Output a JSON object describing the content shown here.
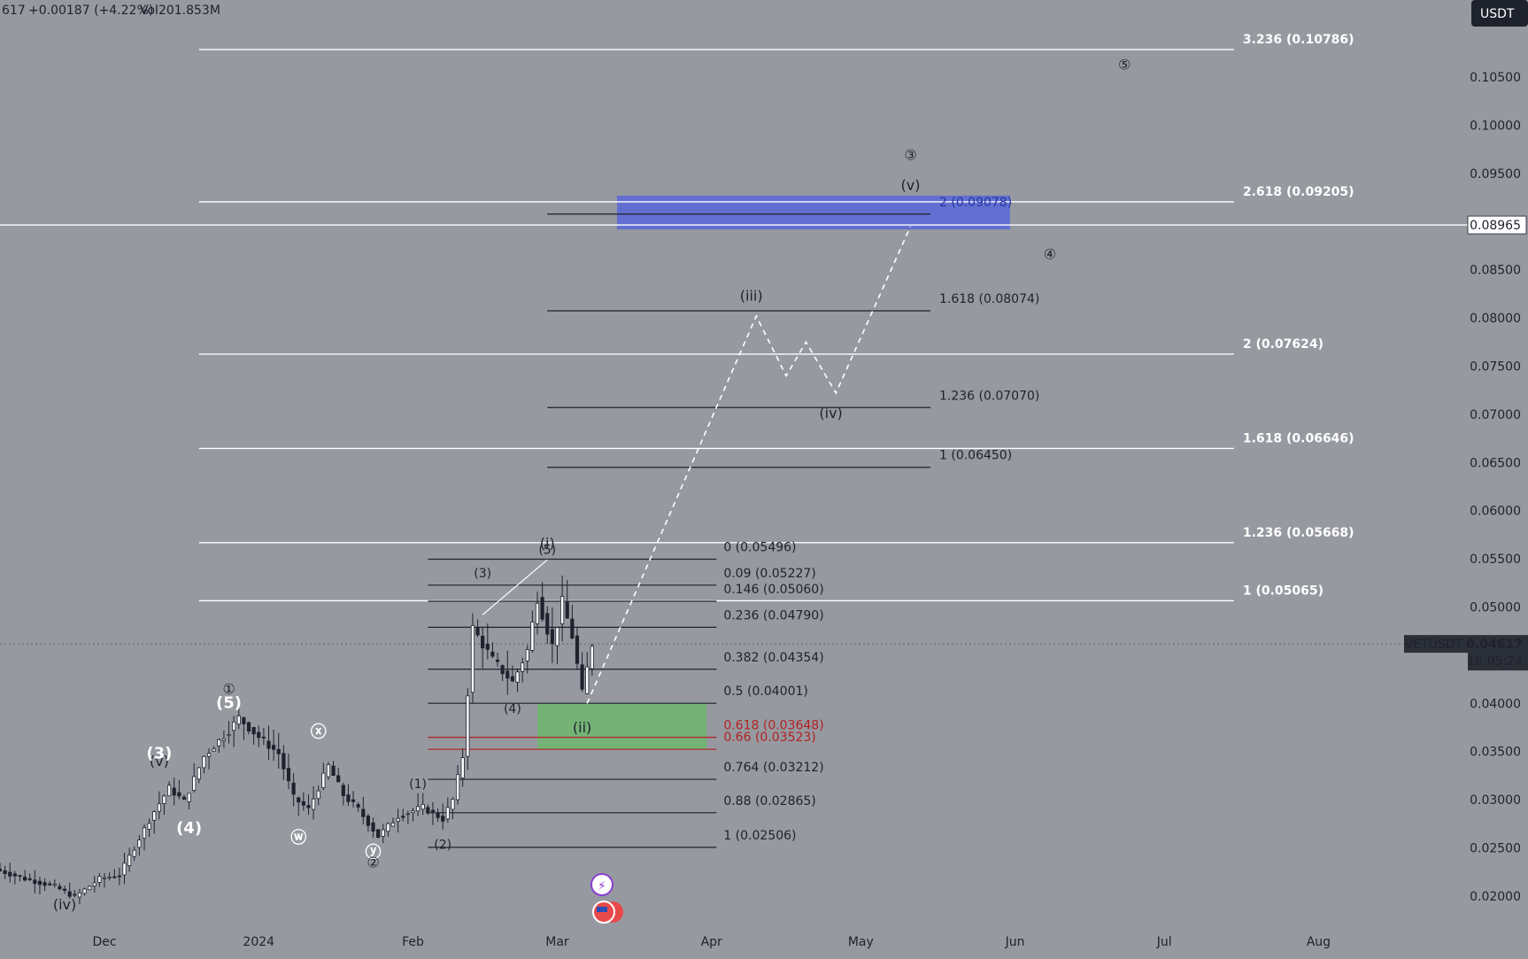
{
  "header": {
    "price_fragment": "617",
    "change": "+0.00187 (+4.22%)",
    "volume": "Vol201.853M"
  },
  "currency_badge": "USDT",
  "symbol_badge": {
    "symbol": "VETUSDT",
    "price": "0.04617",
    "countdown": "16:05:24"
  },
  "crosshair_price": "0.08965",
  "colors": {
    "background": "#9699a0",
    "candle": "#ffffff",
    "fib_white": "#ffffff",
    "fib_black": "#1e222d",
    "fib_red": "#b22222",
    "target_zone": "#5061e0",
    "support_zone": "#6bb86b"
  },
  "chart_data": {
    "type": "candlestick",
    "symbol": "VETUSDT",
    "quote": "USDT",
    "y_axis": {
      "ylim": [
        0.0165,
        0.113
      ],
      "ticks": [
        "0.02000",
        "0.02500",
        "0.03000",
        "0.03500",
        "0.04000",
        "0.04500",
        "0.05000",
        "0.05500",
        "0.06000",
        "0.06500",
        "0.07000",
        "0.07500",
        "0.08000",
        "0.08500",
        "0.09000",
        "0.09500",
        "0.10000",
        "0.10500"
      ],
      "tick_values": [
        0.02,
        0.025,
        0.03,
        0.035,
        0.04,
        0.045,
        0.05,
        0.055,
        0.06,
        0.065,
        0.07,
        0.075,
        0.08,
        0.085,
        0.09,
        0.095,
        0.1,
        0.105
      ]
    },
    "x_axis": {
      "xlim": [
        "2023-11-10",
        "2024-08-31"
      ],
      "ticks": [
        {
          "label": "Dec",
          "date": "2023-12-01"
        },
        {
          "label": "2024",
          "date": "2024-01-01"
        },
        {
          "label": "Feb",
          "date": "2024-02-01"
        },
        {
          "label": "Mar",
          "date": "2024-03-01"
        },
        {
          "label": "Apr",
          "date": "2024-04-01"
        },
        {
          "label": "May",
          "date": "2024-05-01"
        },
        {
          "label": "Jun",
          "date": "2024-06-01"
        },
        {
          "label": "Jul",
          "date": "2024-07-01"
        },
        {
          "label": "Aug",
          "date": "2024-08-01"
        }
      ]
    },
    "price_path": [
      [
        "2023-11-10",
        0.0228
      ],
      [
        "2023-11-16",
        0.0218
      ],
      [
        "2023-11-22",
        0.021
      ],
      [
        "2023-11-26",
        0.0199
      ],
      [
        "2023-12-01",
        0.0218
      ],
      [
        "2023-12-05",
        0.0222
      ],
      [
        "2023-12-09",
        0.026
      ],
      [
        "2023-12-12",
        0.0288
      ],
      [
        "2023-12-15",
        0.0312
      ],
      [
        "2023-12-18",
        0.0298
      ],
      [
        "2023-12-22",
        0.0345
      ],
      [
        "2023-12-27",
        0.0372
      ],
      [
        "2023-12-29",
        0.0385
      ],
      [
        "2024-01-02",
        0.0365
      ],
      [
        "2024-01-06",
        0.0348
      ],
      [
        "2024-01-09",
        0.0302
      ],
      [
        "2024-01-12",
        0.029
      ],
      [
        "2024-01-16",
        0.0335
      ],
      [
        "2024-01-19",
        0.0305
      ],
      [
        "2024-01-22",
        0.029
      ],
      [
        "2024-01-26",
        0.0262
      ],
      [
        "2024-01-30",
        0.0283
      ],
      [
        "2024-02-04",
        0.0292
      ],
      [
        "2024-02-08",
        0.028
      ],
      [
        "2024-02-10",
        0.03
      ],
      [
        "2024-02-12",
        0.0345
      ],
      [
        "2024-02-14",
        0.0478
      ],
      [
        "2024-02-18",
        0.0445
      ],
      [
        "2024-02-22",
        0.0422
      ],
      [
        "2024-02-25",
        0.0455
      ],
      [
        "2024-02-27",
        0.051
      ],
      [
        "2024-03-01",
        0.046
      ],
      [
        "2024-03-03",
        0.0505
      ],
      [
        "2024-03-05",
        0.047
      ],
      [
        "2024-03-07",
        0.041
      ],
      [
        "2024-03-09",
        0.0462
      ]
    ],
    "projection_path": [
      [
        "2024-03-07",
        0.04
      ],
      [
        "2024-04-10",
        0.0802
      ],
      [
        "2024-04-16",
        0.074
      ],
      [
        "2024-04-20",
        0.0775
      ],
      [
        "2024-04-26",
        0.0722
      ],
      [
        "2024-05-11",
        0.0895
      ]
    ],
    "fib_white": [
      {
        "label": "3.236 (0.10786)",
        "value": 0.10786
      },
      {
        "label": "2.618 (0.09205)",
        "value": 0.09205
      },
      {
        "label": "2 (0.07624)",
        "value": 0.07624
      },
      {
        "label": "1.618 (0.06646)",
        "value": 0.06646
      },
      {
        "label": "1.236 (0.05668)",
        "value": 0.05668
      },
      {
        "label": "1 (0.05065)",
        "value": 0.05065
      }
    ],
    "fib_ext_black": [
      {
        "label": "2 (0.09078)",
        "value": 0.09078
      },
      {
        "label": "1.618 (0.08074)",
        "value": 0.08074
      },
      {
        "label": "1.236 (0.07070)",
        "value": 0.0707
      },
      {
        "label": "1 (0.06450)",
        "value": 0.0645
      }
    ],
    "fib_retrace": [
      {
        "label": "0 (0.05496)",
        "value": 0.05496,
        "color": "black"
      },
      {
        "label": "0.09 (0.05227)",
        "value": 0.05227,
        "color": "black"
      },
      {
        "label": "0.146 (0.05060)",
        "value": 0.0506,
        "color": "black"
      },
      {
        "label": "0.236 (0.04790)",
        "value": 0.0479,
        "color": "black"
      },
      {
        "label": "0.382 (0.04354)",
        "value": 0.04354,
        "color": "black"
      },
      {
        "label": "0.5 (0.04001)",
        "value": 0.04001,
        "color": "black"
      },
      {
        "label": "0.618 (0.03648)",
        "value": 0.03648,
        "color": "red"
      },
      {
        "label": "0.66 (0.03523)",
        "value": 0.03523,
        "color": "red"
      },
      {
        "label": "0.764 (0.03212)",
        "value": 0.03212,
        "color": "black"
      },
      {
        "label": "0.88 (0.02865)",
        "value": 0.02865,
        "color": "black"
      },
      {
        "label": "1 (0.02506)",
        "value": 0.02506,
        "color": "black"
      }
    ],
    "target_zone": {
      "from": "2024-03-13",
      "to": "2024-05-31",
      "low": 0.0892,
      "high": 0.0927
    },
    "support_zone": {
      "from": "2024-02-26",
      "to": "2024-03-31",
      "low": 0.0352,
      "high": 0.04
    },
    "wave_labels": [
      {
        "text": "(iv)",
        "date": "2023-11-23",
        "price": 0.0186,
        "style": "dark"
      },
      {
        "text": "(v)",
        "date": "2023-12-12",
        "price": 0.0335,
        "style": "dark"
      },
      {
        "text": "(3)",
        "date": "2023-12-12",
        "price": 0.0343,
        "style": "white"
      },
      {
        "text": "(4)",
        "date": "2023-12-18",
        "price": 0.0265,
        "style": "white"
      },
      {
        "text": "①",
        "date": "2023-12-26",
        "price": 0.041,
        "style": "dark-circle"
      },
      {
        "text": "(5)",
        "date": "2023-12-26",
        "price": 0.0395,
        "style": "white"
      },
      {
        "text": "ⓧ",
        "date": "2024-01-13",
        "price": 0.0365,
        "style": "white-small"
      },
      {
        "text": "ⓦ",
        "date": "2024-01-09",
        "price": 0.0255,
        "style": "white-small"
      },
      {
        "text": "ⓨ",
        "date": "2024-01-24",
        "price": 0.024,
        "style": "white-small"
      },
      {
        "text": "②",
        "date": "2024-01-24",
        "price": 0.023,
        "style": "dark-circle"
      },
      {
        "text": "(1)",
        "date": "2024-02-02",
        "price": 0.0312,
        "style": "dark-small"
      },
      {
        "text": "(2)",
        "date": "2024-02-07",
        "price": 0.0249,
        "style": "dark-small"
      },
      {
        "text": "(3)",
        "date": "2024-02-15",
        "price": 0.0531,
        "style": "dark-small"
      },
      {
        "text": "(4)",
        "date": "2024-02-21",
        "price": 0.039,
        "style": "dark-small"
      },
      {
        "text": "(i)",
        "date": "2024-02-28",
        "price": 0.0561,
        "style": "dark"
      },
      {
        "text": "(5)",
        "date": "2024-02-28",
        "price": 0.0555,
        "style": "dark-small"
      },
      {
        "text": "(ii)",
        "date": "2024-03-06",
        "price": 0.037,
        "style": "dark"
      },
      {
        "text": "(iii)",
        "date": "2024-04-09",
        "price": 0.0818,
        "style": "dark"
      },
      {
        "text": "(iv)",
        "date": "2024-04-25",
        "price": 0.0696,
        "style": "dark"
      },
      {
        "text": "(v)",
        "date": "2024-05-11",
        "price": 0.0933,
        "style": "dark"
      },
      {
        "text": "③",
        "date": "2024-05-11",
        "price": 0.0964,
        "style": "dark-circle"
      },
      {
        "text": "④",
        "date": "2024-06-08",
        "price": 0.0861,
        "style": "dark-circle"
      },
      {
        "text": "⑤",
        "date": "2024-06-23",
        "price": 0.1058,
        "style": "dark-circle"
      }
    ]
  }
}
